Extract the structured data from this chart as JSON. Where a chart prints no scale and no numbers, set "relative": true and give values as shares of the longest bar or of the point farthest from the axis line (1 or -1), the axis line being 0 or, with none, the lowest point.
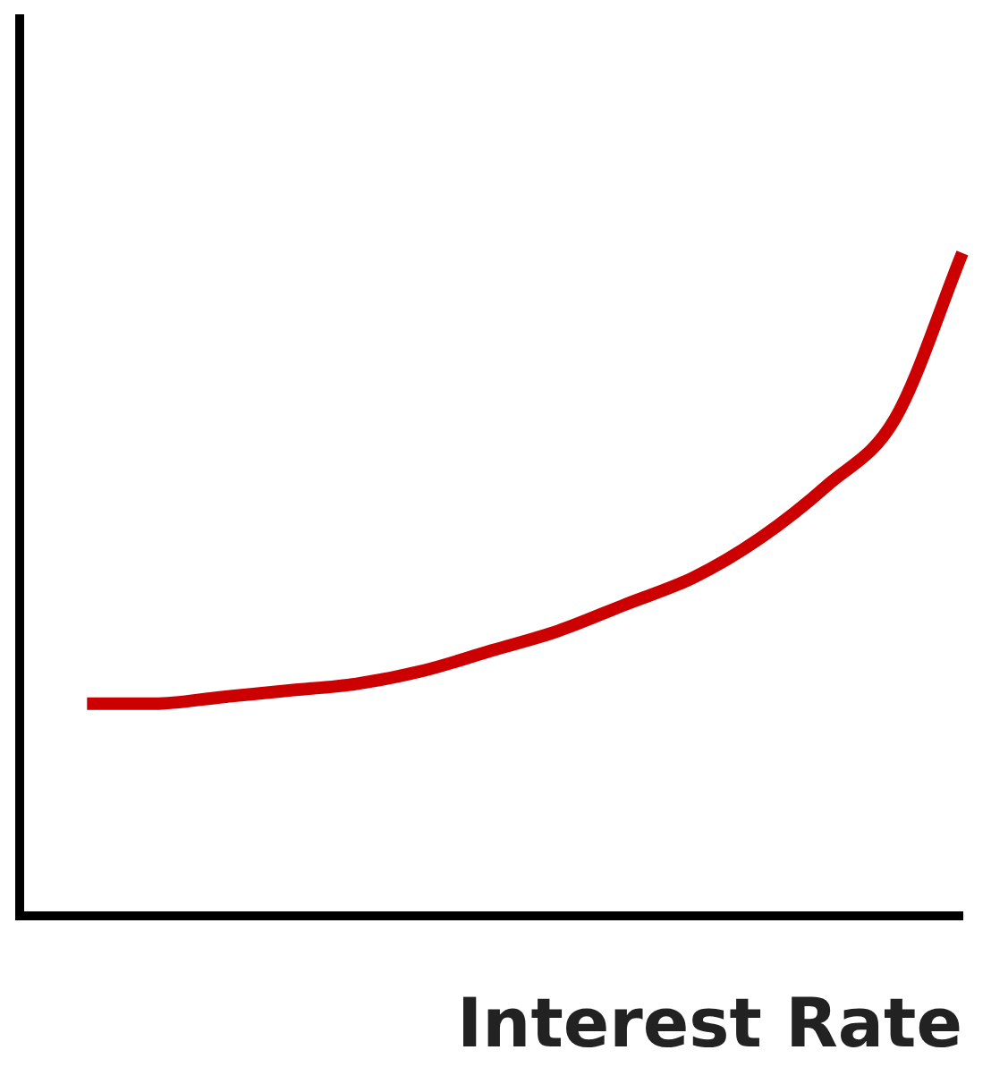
{
  "chart_data": {
    "type": "line",
    "xlabel": "Interest Rate",
    "relative": true,
    "categories": [
      null,
      null,
      null,
      null,
      null,
      null,
      null,
      null,
      null,
      null,
      null,
      null,
      null,
      null,
      null
    ],
    "series": [
      {
        "color": "#cc0000",
        "values": [
          null,
          0.32,
          0.32,
          0.33,
          0.34,
          0.35,
          0.37,
          0.4,
          0.43,
          0.47,
          0.51,
          0.57,
          0.65,
          0.75,
          1
        ]
      }
    ],
    "grid": false,
    "legend": false,
    "marker": "none",
    "line_style": "solid"
  }
}
